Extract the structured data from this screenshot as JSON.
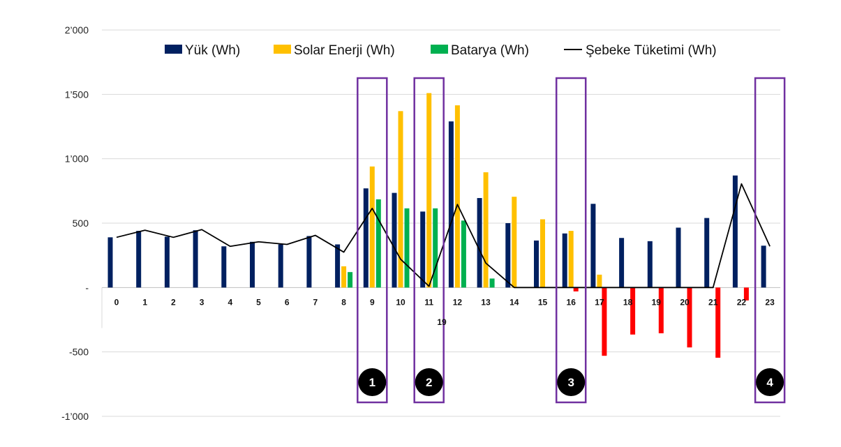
{
  "chart_data": {
    "type": "bar",
    "title": "",
    "xlabel": "",
    "ylabel": "",
    "ylim": [
      -1000,
      2000
    ],
    "yticks": [
      {
        "value": 2000,
        "label": "2’000"
      },
      {
        "value": 1500,
        "label": "1’500"
      },
      {
        "value": 1000,
        "label": "1’000"
      },
      {
        "value": 500,
        "label": "500"
      },
      {
        "value": 0,
        "label": "-"
      },
      {
        "value": -500,
        "label": "-500"
      },
      {
        "value": -1000,
        "label": "-1’000"
      }
    ],
    "categories": [
      "0",
      "1",
      "2",
      "3",
      "4",
      "5",
      "6",
      "7",
      "8",
      "9",
      "10",
      "11",
      "12",
      "13",
      "14",
      "15",
      "16",
      "17",
      "18",
      "19",
      "20",
      "21",
      "22",
      "23"
    ],
    "extra_x_label": "19",
    "grid": true,
    "legend_position": "top",
    "series": [
      {
        "name": "Yük (Wh)",
        "type": "bar",
        "color": "#002060",
        "values": [
          390,
          440,
          395,
          445,
          320,
          355,
          335,
          400,
          335,
          770,
          735,
          590,
          1290,
          695,
          500,
          365,
          420,
          650,
          385,
          360,
          465,
          540,
          870,
          325
        ]
      },
      {
        "name": "Solar Enerji (Wh)",
        "type": "bar",
        "color": "#FFC000",
        "values": [
          0,
          0,
          0,
          0,
          0,
          0,
          0,
          0,
          165,
          940,
          1370,
          1510,
          1415,
          895,
          705,
          530,
          440,
          100,
          0,
          0,
          0,
          0,
          0,
          0
        ]
      },
      {
        "name": "Batarya (Wh)",
        "type": "bar",
        "color": "#00B050",
        "values": [
          0,
          0,
          0,
          0,
          0,
          0,
          0,
          0,
          120,
          685,
          615,
          615,
          520,
          70,
          0,
          0,
          0,
          0,
          0,
          0,
          0,
          0,
          0,
          0
        ]
      },
      {
        "name": "Şebeke Tüketimi (Wh)",
        "type": "line",
        "color": "#000000",
        "values": [
          390,
          445,
          390,
          450,
          320,
          355,
          335,
          405,
          275,
          615,
          220,
          10,
          645,
          190,
          0,
          0,
          0,
          0,
          0,
          0,
          0,
          0,
          805,
          320
        ]
      }
    ],
    "negative_bars": {
      "color": "#FF0000",
      "values": [
        0,
        0,
        0,
        0,
        0,
        0,
        0,
        0,
        0,
        0,
        0,
        0,
        0,
        0,
        0,
        0,
        -30,
        -530,
        -365,
        -355,
        -465,
        -545,
        -100,
        0
      ]
    },
    "highlights": [
      {
        "category": "9",
        "label": "1"
      },
      {
        "category": "11",
        "label": "2"
      },
      {
        "category": "16",
        "label": "3"
      },
      {
        "category": "23",
        "label": "4"
      }
    ],
    "highlight_color": "#7030A0",
    "badge_color": "#000000"
  }
}
